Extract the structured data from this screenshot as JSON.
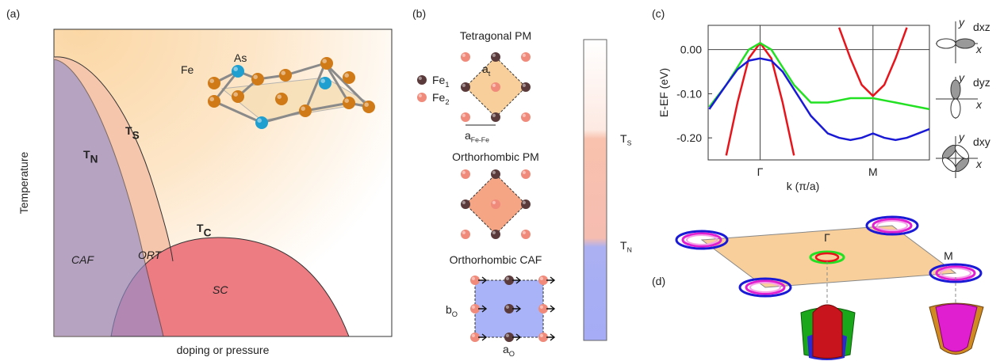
{
  "panel_a": {
    "label": "(a)",
    "y_label": "Temperature",
    "x_label": "doping or pressure",
    "TN": {
      "main": "T",
      "sub": "N"
    },
    "TS": {
      "main": "T",
      "sub": "S"
    },
    "TC": {
      "main": "T",
      "sub": "C"
    },
    "regions": [
      "CAF",
      "ORT",
      "SC"
    ],
    "atoms": [
      "Fe",
      "As"
    ]
  },
  "panel_b": {
    "label": "(b)",
    "phases": [
      "Tetragonal PM",
      "Orthorhombic PM",
      "Orthorhombic CAF"
    ],
    "legend": [
      {
        "main": "Fe",
        "sub": "1"
      },
      {
        "main": "Fe",
        "sub": "2"
      }
    ],
    "lattice": {
      "at": {
        "main": "a",
        "sub": "t"
      },
      "afefe": {
        "main": "a",
        "sub": "Fe-Fe"
      },
      "bo": {
        "main": "b",
        "sub": "O"
      },
      "ao": {
        "main": "a",
        "sub": "O"
      }
    },
    "colorbar": [
      {
        "main": "T",
        "sub": "S"
      },
      {
        "main": "T",
        "sub": "N"
      }
    ]
  },
  "panel_c": {
    "label": "(c)",
    "axis_y": "y",
    "axis_x": "x"
  },
  "chart_data": {
    "type": "line",
    "x_label": "k (π/a)",
    "y_label": "E-EF (eV)",
    "x": [
      -0.45,
      -0.3,
      -0.2,
      -0.1,
      0,
      0.1,
      0.2,
      0.3,
      0.45,
      0.6,
      0.7,
      0.8,
      0.9,
      1.0,
      1.1,
      1.2,
      1.3,
      1.4,
      1.5
    ],
    "series": [
      {
        "name": "dxz",
        "color": "#e8141c",
        "values": [
          null,
          -0.24,
          -0.12,
          -0.02,
          0.015,
          -0.02,
          -0.12,
          -0.24,
          null,
          null,
          0.05,
          -0.02,
          -0.08,
          -0.105,
          -0.08,
          -0.02,
          0.05,
          null,
          null
        ]
      },
      {
        "name": "dyz",
        "color": "#22e022",
        "values": [
          -0.13,
          -0.08,
          -0.04,
          0.0,
          0.015,
          0.0,
          -0.04,
          -0.08,
          -0.12,
          -0.12,
          -0.115,
          -0.11,
          -0.11,
          -0.11,
          -0.115,
          -0.12,
          -0.125,
          -0.13,
          -0.135
        ]
      },
      {
        "name": "dxy",
        "color": "#1a1ad6",
        "values": [
          -0.135,
          -0.08,
          -0.045,
          -0.025,
          -0.02,
          -0.025,
          -0.05,
          -0.09,
          -0.15,
          -0.19,
          -0.2,
          -0.205,
          -0.2,
          -0.19,
          -0.2,
          -0.205,
          -0.2,
          -0.19,
          -0.18
        ]
      }
    ],
    "xlim": [
      -0.46,
      1.5
    ],
    "ylim": [
      -0.25,
      0.055
    ],
    "xticks": [
      {
        "value": 0,
        "label": "Γ"
      },
      {
        "value": 1,
        "label": "M"
      }
    ],
    "yticks": [
      {
        "value": 0,
        "label": "0.00"
      },
      {
        "value": -0.1,
        "label": "-0.10"
      },
      {
        "value": -0.2,
        "label": "-0.20"
      }
    ],
    "grid": true
  },
  "panel_d": {
    "label": "(d)",
    "points": [
      "Γ",
      "M"
    ]
  }
}
